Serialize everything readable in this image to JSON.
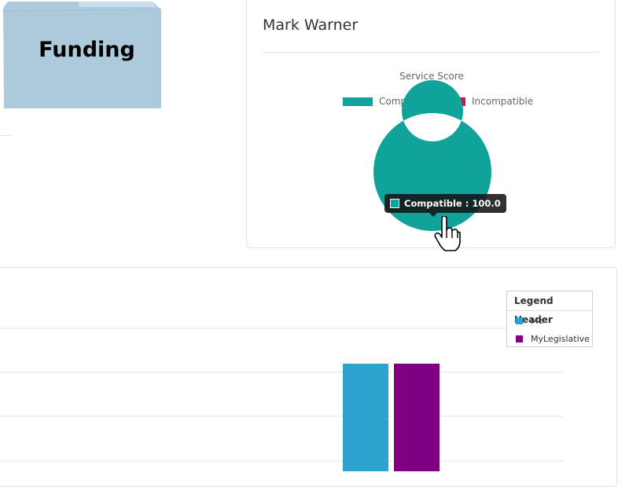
{
  "folder": {
    "label": "Funding",
    "icon": "folder-icon",
    "color": "#aecbdc"
  },
  "profile": {
    "name": "Mark Warner",
    "chart_title": "Service Score"
  },
  "colors": {
    "compatible": "#0fa39a",
    "incompatible": "#c01a4a",
    "me": "#2ca2cf",
    "mylegislative": "#7f0080"
  },
  "tooltip": {
    "label": "Compatible",
    "value": "100.0",
    "text": "Compatible : 100.0"
  },
  "chart_data": [
    {
      "type": "pie",
      "title": "Service Score",
      "labels": [
        "Compatible",
        "Incompatible"
      ],
      "values": [
        100.0,
        0.0
      ],
      "legend": "top"
    },
    {
      "type": "bar",
      "legend_title": "Legend Header",
      "series": [
        {
          "name": "Me",
          "values": [
            1
          ]
        },
        {
          "name": "MyLegislative",
          "values": [
            1
          ]
        }
      ],
      "legend": "top-right"
    }
  ],
  "bar_legend": {
    "header": "Legend Header",
    "items": [
      {
        "label": "Me"
      },
      {
        "label": "MyLegislative"
      }
    ]
  }
}
